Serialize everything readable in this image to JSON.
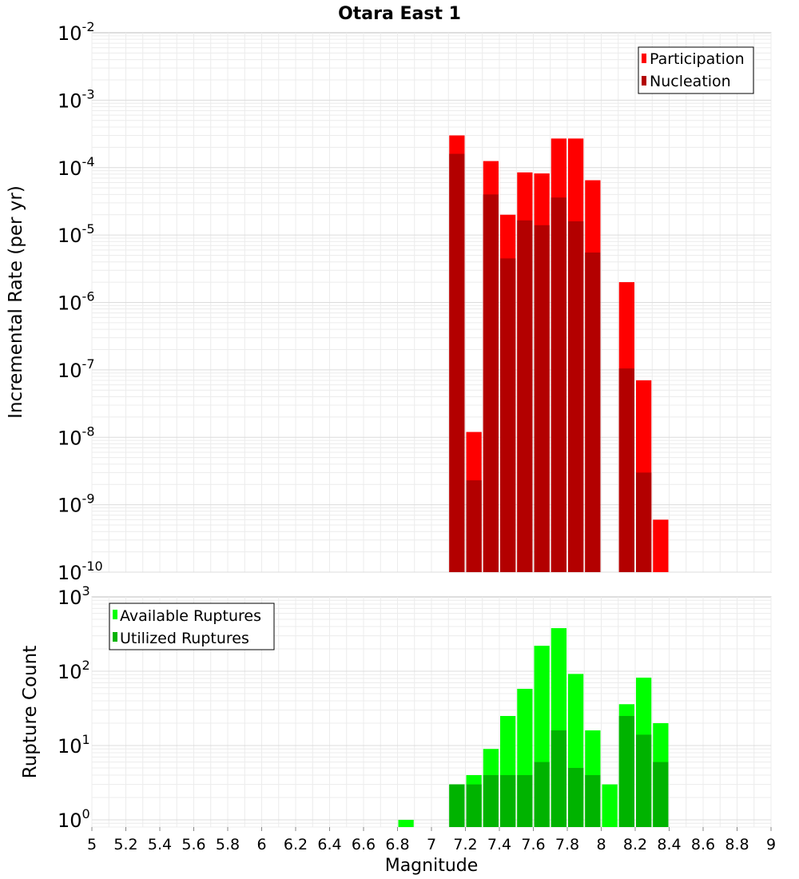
{
  "chart_data": [
    {
      "type": "bar",
      "title": "Otara East 1",
      "ylabel": "Incremental Rate (per yr)",
      "xlabel": "",
      "xlim": [
        5,
        9
      ],
      "ylim": [
        1e-10,
        0.01
      ],
      "yscale": "log",
      "grid": true,
      "legend_placement": "top-right",
      "series": [
        {
          "name": "Participation",
          "color": "#ff0000",
          "x": [
            7.15,
            7.25,
            7.35,
            7.45,
            7.55,
            7.65,
            7.75,
            7.85,
            7.95,
            8.15,
            8.25,
            8.35
          ],
          "values": [
            0.0003,
            1.2e-08,
            0.000125,
            2e-05,
            8.5e-05,
            8.2e-05,
            0.00027,
            0.00027,
            6.5e-05,
            2e-06,
            7e-08,
            6e-10
          ]
        },
        {
          "name": "Nucleation",
          "color": "#b30000",
          "x": [
            7.15,
            7.25,
            7.35,
            7.45,
            7.55,
            7.65,
            7.75,
            7.85,
            7.95,
            8.15,
            8.25
          ],
          "values": [
            0.00016,
            2.3e-09,
            4e-05,
            4.5e-06,
            1.65e-05,
            1.4e-05,
            3.6e-05,
            1.6e-05,
            5.5e-06,
            1.05e-07,
            3e-09
          ]
        }
      ],
      "yticks": [
        {
          "base": "10",
          "exp": "-2"
        },
        {
          "base": "10",
          "exp": "-3"
        },
        {
          "base": "10",
          "exp": "-4"
        },
        {
          "base": "10",
          "exp": "-5"
        },
        {
          "base": "10",
          "exp": "-6"
        },
        {
          "base": "10",
          "exp": "-7"
        },
        {
          "base": "10",
          "exp": "-8"
        },
        {
          "base": "10",
          "exp": "-9"
        },
        {
          "base": "10",
          "exp": "-10"
        }
      ]
    },
    {
      "type": "bar",
      "title": "",
      "ylabel": "Rupture Count",
      "xlabel": "Magnitude",
      "xlim": [
        5,
        9
      ],
      "ylim": [
        0.8,
        1000
      ],
      "yscale": "log",
      "grid": true,
      "legend_placement": "top-left",
      "series": [
        {
          "name": "Available Ruptures",
          "color": "#00ff00",
          "x": [
            6.85,
            7.15,
            7.25,
            7.35,
            7.45,
            7.55,
            7.65,
            7.75,
            7.85,
            7.95,
            8.05,
            8.15,
            8.25,
            8.35
          ],
          "values": [
            1,
            3,
            4,
            9,
            25,
            58,
            220,
            380,
            92,
            16,
            3,
            36,
            82,
            20
          ]
        },
        {
          "name": "Utilized Ruptures",
          "color": "#00b300",
          "x": [
            7.15,
            7.25,
            7.35,
            7.45,
            7.55,
            7.65,
            7.75,
            7.85,
            7.95,
            8.15,
            8.25,
            8.35
          ],
          "values": [
            3,
            3,
            4,
            4,
            4,
            6,
            16,
            5,
            4,
            25,
            14,
            6
          ]
        }
      ],
      "yticks": [
        {
          "base": "10",
          "exp": "3"
        },
        {
          "base": "10",
          "exp": "2"
        },
        {
          "base": "10",
          "exp": "1"
        },
        {
          "base": "10",
          "exp": "0"
        }
      ],
      "xticks": [
        "5",
        "5.2",
        "5.4",
        "5.6",
        "5.8",
        "6",
        "6.2",
        "6.4",
        "6.6",
        "6.8",
        "7",
        "7.2",
        "7.4",
        "7.6",
        "7.8",
        "8",
        "8.2",
        "8.4",
        "8.6",
        "8.8",
        "9"
      ]
    }
  ]
}
